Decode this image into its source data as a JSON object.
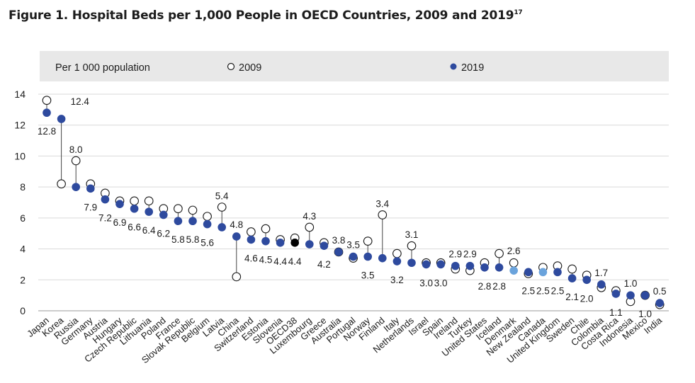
{
  "title": {
    "text": "Figure 1. Hospital Beds per 1,000 People in OECD Countries, 2009 and 2019",
    "sup": "17"
  },
  "legend": {
    "unit": "Per 1 000 population",
    "s2009": "2009",
    "s2019": "2019"
  },
  "colors": {
    "y2019": "#2e4a9e",
    "y2009_fill": "#ffffff",
    "highlight_oecd": "#000000",
    "highlight_light": "#6aa3dc",
    "grid": "#d9d9d9",
    "legend_bg": "#e8e8e8",
    "stem": "#444444"
  },
  "chart_data": {
    "type": "scatter",
    "title": "Figure 1. Hospital Beds per 1,000 People in OECD Countries, 2009 and 2019",
    "ylim": [
      0,
      14
    ],
    "yticks": [
      0,
      2,
      4,
      6,
      8,
      10,
      12,
      14
    ],
    "grid": true,
    "legend_position": "top",
    "categories": [
      "Japan",
      "Korea",
      "Russia",
      "Germany",
      "Austria",
      "Hungary",
      "Czech Republic",
      "Lithuania",
      "Poland",
      "France",
      "Slovak Republic",
      "Belgium",
      "Latvia",
      "China",
      "Switzerland",
      "Estonia",
      "Slovenia",
      "OECD38",
      "Luxembourg",
      "Greece",
      "Australia",
      "Portugal",
      "Norway",
      "Finland",
      "Italy",
      "Netherlands",
      "Israel",
      "Spain",
      "Ireland",
      "Turkey",
      "United States",
      "Iceland",
      "Denmark",
      "New Zealand",
      "Canada",
      "United Kingdom",
      "Sweden",
      "Chile",
      "Colombia",
      "Costa Rica",
      "Indonesia",
      "Mexico",
      "India"
    ],
    "series": [
      {
        "name": "2009",
        "values": [
          13.6,
          8.2,
          9.7,
          8.2,
          7.6,
          7.1,
          7.1,
          7.1,
          6.6,
          6.6,
          6.5,
          6.1,
          6.7,
          2.2,
          5.1,
          5.3,
          4.6,
          4.7,
          5.4,
          4.4,
          3.8,
          3.4,
          4.5,
          6.2,
          3.7,
          4.2,
          3.1,
          3.1,
          2.7,
          2.6,
          3.1,
          3.7,
          3.1,
          2.4,
          2.8,
          2.9,
          2.7,
          2.3,
          1.5,
          1.3,
          0.6,
          1.0,
          0.4
        ]
      },
      {
        "name": "2019",
        "values": [
          12.8,
          12.4,
          8.0,
          7.9,
          7.2,
          6.9,
          6.6,
          6.4,
          6.2,
          5.8,
          5.8,
          5.6,
          5.4,
          4.8,
          4.6,
          4.5,
          4.4,
          4.4,
          4.3,
          4.2,
          3.8,
          3.5,
          3.5,
          3.4,
          3.2,
          3.1,
          3.0,
          3.0,
          2.9,
          2.9,
          2.8,
          2.8,
          2.6,
          2.5,
          2.5,
          2.5,
          2.1,
          2.0,
          1.7,
          1.1,
          1.0,
          1.0,
          0.5
        ]
      }
    ],
    "highlight_oecd": [
      "OECD38"
    ],
    "highlight_light": [
      "Denmark",
      "Canada"
    ]
  }
}
